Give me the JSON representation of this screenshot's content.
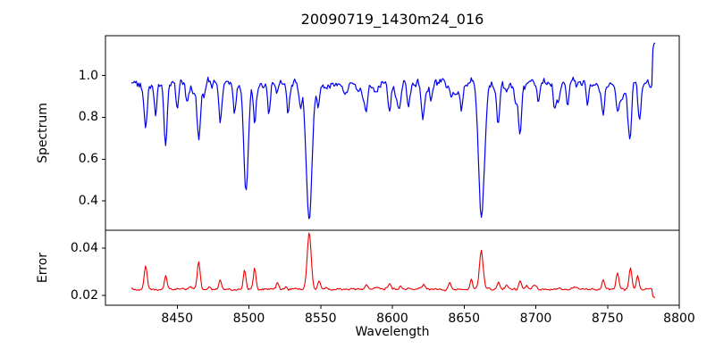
{
  "figure": {
    "title": "20090719_1430m24_016",
    "background_color": "#ffffff"
  },
  "chart_data": {
    "type": "line",
    "title": "20090719_1430m24_016",
    "xlabel": "Wavelength",
    "legend": "none",
    "grid": false,
    "xlim": [
      8400,
      8800
    ],
    "xticks": [
      8450,
      8500,
      8550,
      8600,
      8650,
      8700,
      8750,
      8800
    ],
    "xtick_labels": [
      "8450",
      "8500",
      "8550",
      "8600",
      "8650",
      "8700",
      "8750",
      "8800"
    ],
    "x_start": 8418,
    "x_end": 8783,
    "n_points": 520,
    "seed": 20090719,
    "panels": [
      {
        "name": "spectrum",
        "ylabel": "Spectrum",
        "ylim": [
          0.26,
          1.19
        ],
        "yticks": [
          0.4,
          0.6,
          0.8,
          1.0
        ],
        "ytick_labels": [
          "0.4",
          "0.6",
          "0.8",
          "1.0"
        ],
        "line_color": "#0000ee",
        "continuum": 0.965,
        "noise_amp": 0.055,
        "micro_line_count": 70,
        "micro_line_max_depth": 0.1,
        "absorption_lines": [
          {
            "wl": 8428,
            "depth": 0.22,
            "sigma": 1.1
          },
          {
            "wl": 8435,
            "depth": 0.17,
            "sigma": 0.9
          },
          {
            "wl": 8442,
            "depth": 0.27,
            "sigma": 1.1
          },
          {
            "wl": 8450,
            "depth": 0.12,
            "sigma": 0.9
          },
          {
            "wl": 8457,
            "depth": 0.1,
            "sigma": 0.9
          },
          {
            "wl": 8465,
            "depth": 0.27,
            "sigma": 1.2
          },
          {
            "wl": 8480,
            "depth": 0.19,
            "sigma": 1.0
          },
          {
            "wl": 8490,
            "depth": 0.1,
            "sigma": 0.9
          },
          {
            "wl": 8498,
            "depth": 0.54,
            "sigma": 1.6
          },
          {
            "wl": 8504,
            "depth": 0.2,
            "sigma": 1.0
          },
          {
            "wl": 8514,
            "depth": 0.15,
            "sigma": 0.9
          },
          {
            "wl": 8527,
            "depth": 0.09,
            "sigma": 0.9
          },
          {
            "wl": 8536,
            "depth": 0.11,
            "sigma": 0.9
          },
          {
            "wl": 8542,
            "depth": 0.68,
            "sigma": 2.0
          },
          {
            "wl": 8548.5,
            "depth": 0.12,
            "sigma": 0.9
          },
          {
            "wl": 8582,
            "depth": 0.12,
            "sigma": 0.9
          },
          {
            "wl": 8598,
            "depth": 0.13,
            "sigma": 0.9
          },
          {
            "wl": 8611,
            "depth": 0.12,
            "sigma": 0.9
          },
          {
            "wl": 8621,
            "depth": 0.1,
            "sigma": 0.9
          },
          {
            "wl": 8648,
            "depth": 0.13,
            "sigma": 0.9
          },
          {
            "wl": 8662,
            "depth": 0.655,
            "sigma": 1.9
          },
          {
            "wl": 8674,
            "depth": 0.17,
            "sigma": 0.9
          },
          {
            "wl": 8689,
            "depth": 0.26,
            "sigma": 1.1
          },
          {
            "wl": 8702,
            "depth": 0.1,
            "sigma": 0.9
          },
          {
            "wl": 8713,
            "depth": 0.12,
            "sigma": 0.9
          },
          {
            "wl": 8722,
            "depth": 0.1,
            "sigma": 0.9
          },
          {
            "wl": 8736,
            "depth": 0.11,
            "sigma": 0.9
          },
          {
            "wl": 8747,
            "depth": 0.13,
            "sigma": 0.9
          },
          {
            "wl": 8757,
            "depth": 0.12,
            "sigma": 0.9
          },
          {
            "wl": 8766,
            "depth": 0.17,
            "sigma": 1.0
          },
          {
            "wl": 8772,
            "depth": 0.15,
            "sigma": 0.9
          }
        ],
        "end_spike": {
          "wl": 8781,
          "value": 1.145
        }
      },
      {
        "name": "error",
        "ylabel": "Error",
        "ylim": [
          0.0158,
          0.0475
        ],
        "yticks": [
          0.02,
          0.04
        ],
        "ytick_labels": [
          "0.02",
          "0.04"
        ],
        "line_color": "#ee0000",
        "baseline": 0.0225,
        "noise_amp": 0.0012,
        "micro_line_count": 40,
        "micro_line_max_amp": 0.002,
        "spikes": [
          {
            "wl": 8428,
            "amp": 0.01,
            "sigma": 1.0
          },
          {
            "wl": 8442,
            "amp": 0.006,
            "sigma": 0.9
          },
          {
            "wl": 8465,
            "amp": 0.012,
            "sigma": 1.0
          },
          {
            "wl": 8480,
            "amp": 0.004,
            "sigma": 0.9
          },
          {
            "wl": 8497,
            "amp": 0.008,
            "sigma": 0.9
          },
          {
            "wl": 8504,
            "amp": 0.009,
            "sigma": 0.9
          },
          {
            "wl": 8520,
            "amp": 0.003,
            "sigma": 0.9
          },
          {
            "wl": 8542,
            "amp": 0.023,
            "sigma": 1.4
          },
          {
            "wl": 8549,
            "amp": 0.004,
            "sigma": 0.9
          },
          {
            "wl": 8582,
            "amp": 0.002,
            "sigma": 0.9
          },
          {
            "wl": 8598,
            "amp": 0.002,
            "sigma": 0.9
          },
          {
            "wl": 8640,
            "amp": 0.003,
            "sigma": 0.9
          },
          {
            "wl": 8655,
            "amp": 0.004,
            "sigma": 0.9
          },
          {
            "wl": 8662,
            "amp": 0.0165,
            "sigma": 1.3
          },
          {
            "wl": 8674,
            "amp": 0.003,
            "sigma": 0.9
          },
          {
            "wl": 8689,
            "amp": 0.004,
            "sigma": 1.0
          },
          {
            "wl": 8747,
            "amp": 0.004,
            "sigma": 0.9
          },
          {
            "wl": 8757,
            "amp": 0.007,
            "sigma": 1.0
          },
          {
            "wl": 8766,
            "amp": 0.009,
            "sigma": 1.0
          },
          {
            "wl": 8771,
            "amp": 0.006,
            "sigma": 0.9
          }
        ],
        "end_dip": {
          "wl": 8781,
          "value": 0.0192
        }
      }
    ]
  }
}
